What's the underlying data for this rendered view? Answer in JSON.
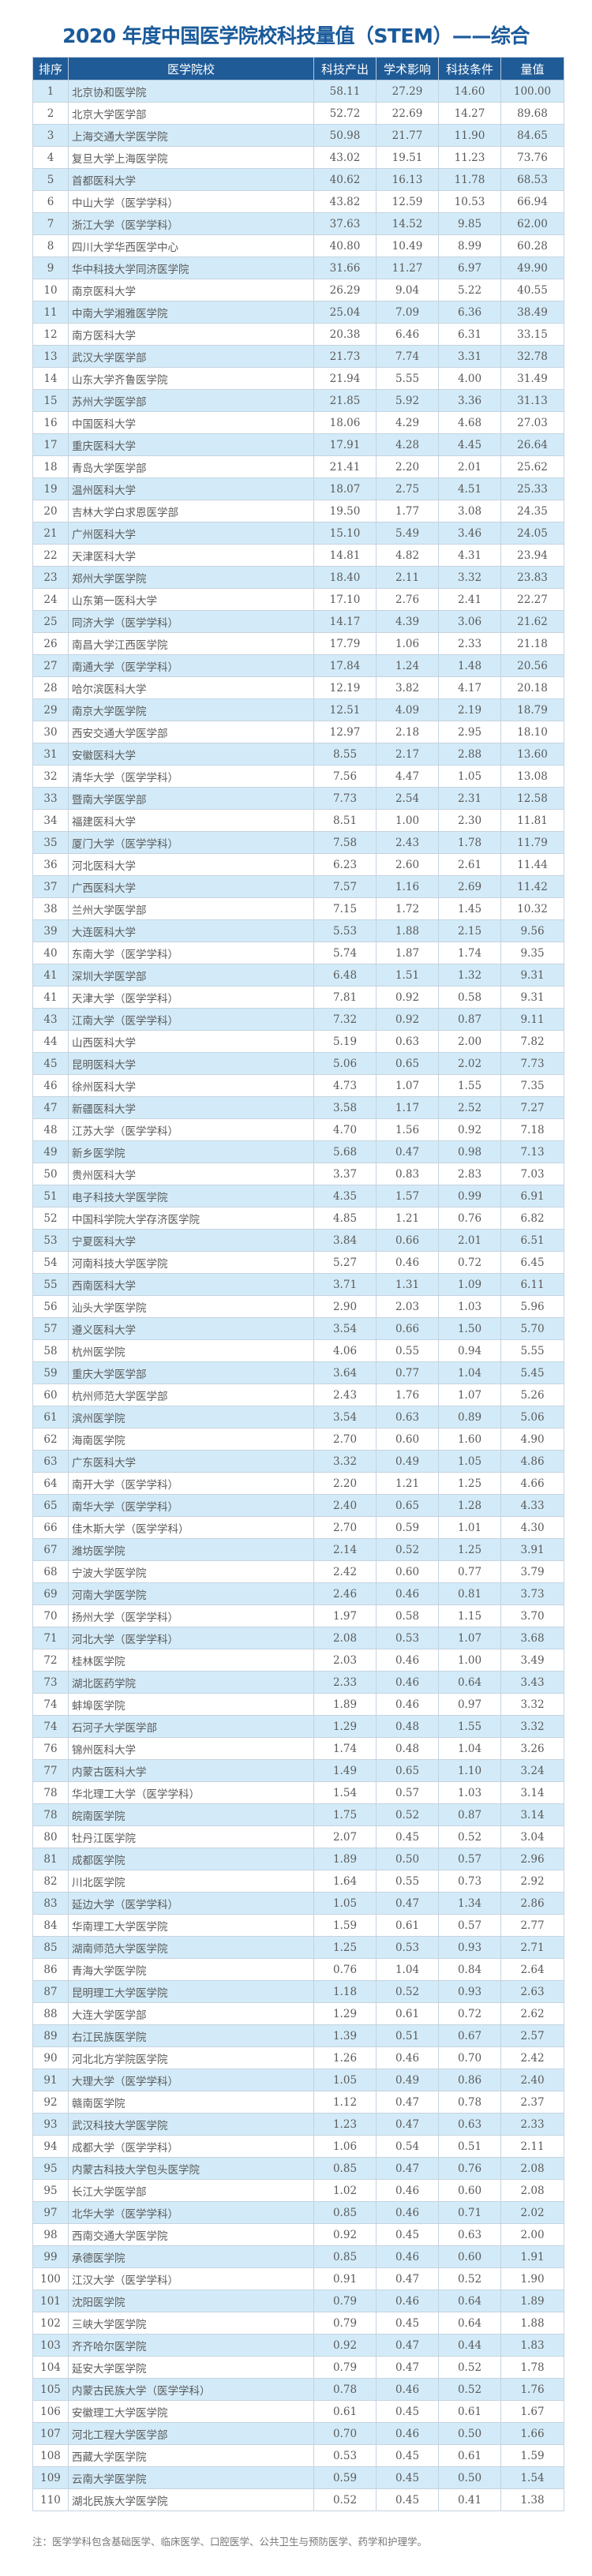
{
  "title": "2020 年度中国医学院校科技量值（STEM）——综合",
  "colors": {
    "header_bg": "#1f5b97",
    "title": "#1a5a9a",
    "stripe": "#d3ebf8"
  },
  "table": {
    "headers": [
      "排序",
      "医学院校",
      "科技产出",
      "学术影响",
      "科技条件",
      "量值"
    ],
    "rows": [
      [
        "1",
        "北京协和医学院",
        "58.11",
        "27.29",
        "14.60",
        "100.00"
      ],
      [
        "2",
        "北京大学医学部",
        "52.72",
        "22.69",
        "14.27",
        "89.68"
      ],
      [
        "3",
        "上海交通大学医学院",
        "50.98",
        "21.77",
        "11.90",
        "84.65"
      ],
      [
        "4",
        "复旦大学上海医学院",
        "43.02",
        "19.51",
        "11.23",
        "73.76"
      ],
      [
        "5",
        "首都医科大学",
        "40.62",
        "16.13",
        "11.78",
        "68.53"
      ],
      [
        "6",
        "中山大学（医学学科）",
        "43.82",
        "12.59",
        "10.53",
        "66.94"
      ],
      [
        "7",
        "浙江大学（医学学科）",
        "37.63",
        "14.52",
        "9.85",
        "62.00"
      ],
      [
        "8",
        "四川大学华西医学中心",
        "40.80",
        "10.49",
        "8.99",
        "60.28"
      ],
      [
        "9",
        "华中科技大学同济医学院",
        "31.66",
        "11.27",
        "6.97",
        "49.90"
      ],
      [
        "10",
        "南京医科大学",
        "26.29",
        "9.04",
        "5.22",
        "40.55"
      ],
      [
        "11",
        "中南大学湘雅医学院",
        "25.04",
        "7.09",
        "6.36",
        "38.49"
      ],
      [
        "12",
        "南方医科大学",
        "20.38",
        "6.46",
        "6.31",
        "33.15"
      ],
      [
        "13",
        "武汉大学医学部",
        "21.73",
        "7.74",
        "3.31",
        "32.78"
      ],
      [
        "14",
        "山东大学齐鲁医学院",
        "21.94",
        "5.55",
        "4.00",
        "31.49"
      ],
      [
        "15",
        "苏州大学医学部",
        "21.85",
        "5.92",
        "3.36",
        "31.13"
      ],
      [
        "16",
        "中国医科大学",
        "18.06",
        "4.29",
        "4.68",
        "27.03"
      ],
      [
        "17",
        "重庆医科大学",
        "17.91",
        "4.28",
        "4.45",
        "26.64"
      ],
      [
        "18",
        "青岛大学医学部",
        "21.41",
        "2.20",
        "2.01",
        "25.62"
      ],
      [
        "19",
        "温州医科大学",
        "18.07",
        "2.75",
        "4.51",
        "25.33"
      ],
      [
        "20",
        "吉林大学白求恩医学部",
        "19.50",
        "1.77",
        "3.08",
        "24.35"
      ],
      [
        "21",
        "广州医科大学",
        "15.10",
        "5.49",
        "3.46",
        "24.05"
      ],
      [
        "22",
        "天津医科大学",
        "14.81",
        "4.82",
        "4.31",
        "23.94"
      ],
      [
        "23",
        "郑州大学医学院",
        "18.40",
        "2.11",
        "3.32",
        "23.83"
      ],
      [
        "24",
        "山东第一医科大学",
        "17.10",
        "2.76",
        "2.41",
        "22.27"
      ],
      [
        "25",
        "同济大学（医学学科）",
        "14.17",
        "4.39",
        "3.06",
        "21.62"
      ],
      [
        "26",
        "南昌大学江西医学院",
        "17.79",
        "1.06",
        "2.33",
        "21.18"
      ],
      [
        "27",
        "南通大学（医学学科）",
        "17.84",
        "1.24",
        "1.48",
        "20.56"
      ],
      [
        "28",
        "哈尔滨医科大学",
        "12.19",
        "3.82",
        "4.17",
        "20.18"
      ],
      [
        "29",
        "南京大学医学院",
        "12.51",
        "4.09",
        "2.19",
        "18.79"
      ],
      [
        "30",
        "西安交通大学医学部",
        "12.97",
        "2.18",
        "2.95",
        "18.10"
      ],
      [
        "31",
        "安徽医科大学",
        "8.55",
        "2.17",
        "2.88",
        "13.60"
      ],
      [
        "32",
        "清华大学（医学学科）",
        "7.56",
        "4.47",
        "1.05",
        "13.08"
      ],
      [
        "33",
        "暨南大学医学部",
        "7.73",
        "2.54",
        "2.31",
        "12.58"
      ],
      [
        "34",
        "福建医科大学",
        "8.51",
        "1.00",
        "2.30",
        "11.81"
      ],
      [
        "35",
        "厦门大学（医学学科）",
        "7.58",
        "2.43",
        "1.78",
        "11.79"
      ],
      [
        "36",
        "河北医科大学",
        "6.23",
        "2.60",
        "2.61",
        "11.44"
      ],
      [
        "37",
        "广西医科大学",
        "7.57",
        "1.16",
        "2.69",
        "11.42"
      ],
      [
        "38",
        "兰州大学医学部",
        "7.15",
        "1.72",
        "1.45",
        "10.32"
      ],
      [
        "39",
        "大连医科大学",
        "5.53",
        "1.88",
        "2.15",
        "9.56"
      ],
      [
        "40",
        "东南大学（医学学科）",
        "5.74",
        "1.87",
        "1.74",
        "9.35"
      ],
      [
        "41",
        "深圳大学医学部",
        "6.48",
        "1.51",
        "1.32",
        "9.31"
      ],
      [
        "41",
        "天津大学（医学学科）",
        "7.81",
        "0.92",
        "0.58",
        "9.31"
      ],
      [
        "43",
        "江南大学（医学学科）",
        "7.32",
        "0.92",
        "0.87",
        "9.11"
      ],
      [
        "44",
        "山西医科大学",
        "5.19",
        "0.63",
        "2.00",
        "7.82"
      ],
      [
        "45",
        "昆明医科大学",
        "5.06",
        "0.65",
        "2.02",
        "7.73"
      ],
      [
        "46",
        "徐州医科大学",
        "4.73",
        "1.07",
        "1.55",
        "7.35"
      ],
      [
        "47",
        "新疆医科大学",
        "3.58",
        "1.17",
        "2.52",
        "7.27"
      ],
      [
        "48",
        "江苏大学（医学学科）",
        "4.70",
        "1.56",
        "0.92",
        "7.18"
      ],
      [
        "49",
        "新乡医学院",
        "5.68",
        "0.47",
        "0.98",
        "7.13"
      ],
      [
        "50",
        "贵州医科大学",
        "3.37",
        "0.83",
        "2.83",
        "7.03"
      ],
      [
        "51",
        "电子科技大学医学院",
        "4.35",
        "1.57",
        "0.99",
        "6.91"
      ],
      [
        "52",
        "中国科学院大学存济医学院",
        "4.85",
        "1.21",
        "0.76",
        "6.82"
      ],
      [
        "53",
        "宁夏医科大学",
        "3.84",
        "0.66",
        "2.01",
        "6.51"
      ],
      [
        "54",
        "河南科技大学医学院",
        "5.27",
        "0.46",
        "0.72",
        "6.45"
      ],
      [
        "55",
        "西南医科大学",
        "3.71",
        "1.31",
        "1.09",
        "6.11"
      ],
      [
        "56",
        "汕头大学医学院",
        "2.90",
        "2.03",
        "1.03",
        "5.96"
      ],
      [
        "57",
        "遵义医科大学",
        "3.54",
        "0.66",
        "1.50",
        "5.70"
      ],
      [
        "58",
        "杭州医学院",
        "4.06",
        "0.55",
        "0.94",
        "5.55"
      ],
      [
        "59",
        "重庆大学医学部",
        "3.64",
        "0.77",
        "1.04",
        "5.45"
      ],
      [
        "60",
        "杭州师范大学医学部",
        "2.43",
        "1.76",
        "1.07",
        "5.26"
      ],
      [
        "61",
        "滨州医学院",
        "3.54",
        "0.63",
        "0.89",
        "5.06"
      ],
      [
        "62",
        "海南医学院",
        "2.70",
        "0.60",
        "1.60",
        "4.90"
      ],
      [
        "63",
        "广东医科大学",
        "3.32",
        "0.49",
        "1.05",
        "4.86"
      ],
      [
        "64",
        "南开大学（医学学科）",
        "2.20",
        "1.21",
        "1.25",
        "4.66"
      ],
      [
        "65",
        "南华大学（医学学科）",
        "2.40",
        "0.65",
        "1.28",
        "4.33"
      ],
      [
        "66",
        "佳木斯大学（医学学科）",
        "2.70",
        "0.59",
        "1.01",
        "4.30"
      ],
      [
        "67",
        "潍坊医学院",
        "2.14",
        "0.52",
        "1.25",
        "3.91"
      ],
      [
        "68",
        "宁波大学医学院",
        "2.42",
        "0.60",
        "0.77",
        "3.79"
      ],
      [
        "69",
        "河南大学医学院",
        "2.46",
        "0.46",
        "0.81",
        "3.73"
      ],
      [
        "70",
        "扬州大学（医学学科）",
        "1.97",
        "0.58",
        "1.15",
        "3.70"
      ],
      [
        "71",
        "河北大学（医学学科）",
        "2.08",
        "0.53",
        "1.07",
        "3.68"
      ],
      [
        "72",
        "桂林医学院",
        "2.03",
        "0.46",
        "1.00",
        "3.49"
      ],
      [
        "73",
        "湖北医药学院",
        "2.33",
        "0.46",
        "0.64",
        "3.43"
      ],
      [
        "74",
        "蚌埠医学院",
        "1.89",
        "0.46",
        "0.97",
        "3.32"
      ],
      [
        "74",
        "石河子大学医学部",
        "1.29",
        "0.48",
        "1.55",
        "3.32"
      ],
      [
        "76",
        "锦州医科大学",
        "1.74",
        "0.48",
        "1.04",
        "3.26"
      ],
      [
        "77",
        "内蒙古医科大学",
        "1.49",
        "0.65",
        "1.10",
        "3.24"
      ],
      [
        "78",
        "华北理工大学（医学学科）",
        "1.54",
        "0.57",
        "1.03",
        "3.14"
      ],
      [
        "78",
        "皖南医学院",
        "1.75",
        "0.52",
        "0.87",
        "3.14"
      ],
      [
        "80",
        "牡丹江医学院",
        "2.07",
        "0.45",
        "0.52",
        "3.04"
      ],
      [
        "81",
        "成都医学院",
        "1.89",
        "0.50",
        "0.57",
        "2.96"
      ],
      [
        "82",
        "川北医学院",
        "1.64",
        "0.55",
        "0.73",
        "2.92"
      ],
      [
        "83",
        "延边大学（医学学科）",
        "1.05",
        "0.47",
        "1.34",
        "2.86"
      ],
      [
        "84",
        "华南理工大学医学院",
        "1.59",
        "0.61",
        "0.57",
        "2.77"
      ],
      [
        "85",
        "湖南师范大学医学院",
        "1.25",
        "0.53",
        "0.93",
        "2.71"
      ],
      [
        "86",
        "青海大学医学院",
        "0.76",
        "1.04",
        "0.84",
        "2.64"
      ],
      [
        "87",
        "昆明理工大学医学院",
        "1.18",
        "0.52",
        "0.93",
        "2.63"
      ],
      [
        "88",
        "大连大学医学部",
        "1.29",
        "0.61",
        "0.72",
        "2.62"
      ],
      [
        "89",
        "右江民族医学院",
        "1.39",
        "0.51",
        "0.67",
        "2.57"
      ],
      [
        "90",
        "河北北方学院医学院",
        "1.26",
        "0.46",
        "0.70",
        "2.42"
      ],
      [
        "91",
        "大理大学（医学学科）",
        "1.05",
        "0.49",
        "0.86",
        "2.40"
      ],
      [
        "92",
        "赣南医学院",
        "1.12",
        "0.47",
        "0.78",
        "2.37"
      ],
      [
        "93",
        "武汉科技大学医学院",
        "1.23",
        "0.47",
        "0.63",
        "2.33"
      ],
      [
        "94",
        "成都大学（医学学科）",
        "1.06",
        "0.54",
        "0.51",
        "2.11"
      ],
      [
        "95",
        "内蒙古科技大学包头医学院",
        "0.85",
        "0.47",
        "0.76",
        "2.08"
      ],
      [
        "95",
        "长江大学医学部",
        "1.02",
        "0.46",
        "0.60",
        "2.08"
      ],
      [
        "97",
        "北华大学（医学学科）",
        "0.85",
        "0.46",
        "0.71",
        "2.02"
      ],
      [
        "98",
        "西南交通大学医学院",
        "0.92",
        "0.45",
        "0.63",
        "2.00"
      ],
      [
        "99",
        "承德医学院",
        "0.85",
        "0.46",
        "0.60",
        "1.91"
      ],
      [
        "100",
        "江汉大学（医学学科）",
        "0.91",
        "0.47",
        "0.52",
        "1.90"
      ],
      [
        "101",
        "沈阳医学院",
        "0.79",
        "0.46",
        "0.64",
        "1.89"
      ],
      [
        "102",
        "三峡大学医学院",
        "0.79",
        "0.45",
        "0.64",
        "1.88"
      ],
      [
        "103",
        "齐齐哈尔医学院",
        "0.92",
        "0.47",
        "0.44",
        "1.83"
      ],
      [
        "104",
        "延安大学医学院",
        "0.79",
        "0.47",
        "0.52",
        "1.78"
      ],
      [
        "105",
        "内蒙古民族大学（医学学科）",
        "0.78",
        "0.46",
        "0.52",
        "1.76"
      ],
      [
        "106",
        "安徽理工大学医学院",
        "0.61",
        "0.45",
        "0.61",
        "1.67"
      ],
      [
        "107",
        "河北工程大学医学部",
        "0.70",
        "0.46",
        "0.50",
        "1.66"
      ],
      [
        "108",
        "西藏大学医学院",
        "0.53",
        "0.45",
        "0.61",
        "1.59"
      ],
      [
        "109",
        "云南大学医学院",
        "0.59",
        "0.45",
        "0.50",
        "1.54"
      ],
      [
        "110",
        "湖北民族大学医学院",
        "0.52",
        "0.45",
        "0.41",
        "1.38"
      ]
    ]
  },
  "note": "注：医学学科包含基础医学、临床医学、口腔医学、公共卫生与预防医学、药学和护理学。"
}
